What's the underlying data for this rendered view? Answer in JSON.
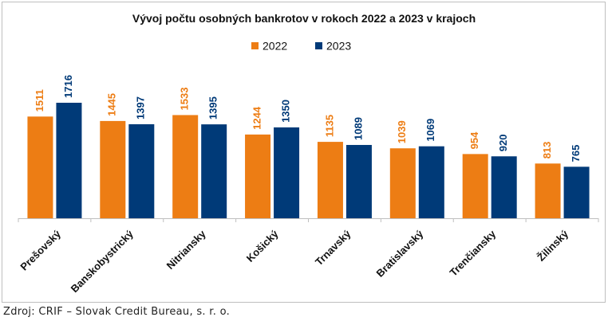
{
  "chart_data": {
    "type": "bar",
    "title": "Vývoj počtu osobných bankrotov v rokoch 2022 a 2023 v krajoch",
    "categories": [
      "Prešovský",
      "Banskobystrický",
      "Nitriansky",
      "Košický",
      "Trnavský",
      "Bratislavský",
      "Trenčiansky",
      "Žilinský"
    ],
    "series": [
      {
        "name": "2022",
        "color": "#ed7d14",
        "values": [
          1511,
          1445,
          1533,
          1244,
          1135,
          1039,
          954,
          813
        ]
      },
      {
        "name": "2023",
        "color": "#003a78",
        "values": [
          1716,
          1397,
          1395,
          1350,
          1089,
          1069,
          920,
          765
        ]
      }
    ],
    "ylim": [
      0,
      2000
    ],
    "grid": false,
    "legend": "top-center",
    "xlabel": "",
    "ylabel": ""
  },
  "source": "Zdroj: CRIF – Slovak Credit Bureau, s. r. o."
}
